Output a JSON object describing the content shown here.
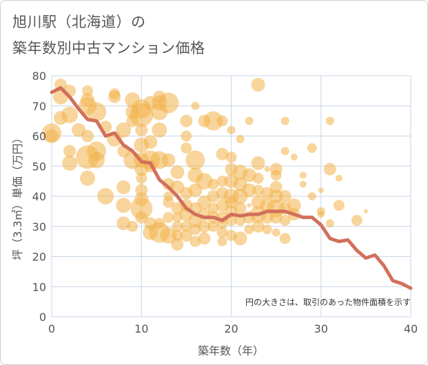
{
  "title_line1": "旭川駅（北海道）の",
  "title_line2": "築年数別中古マンション価格",
  "xlabel": "築年数（年）",
  "ylabel": "坪（3.3㎡）単価（万円）",
  "note": "円の大きさは、取引のあった物件面積を示す",
  "colors": {
    "bubble": "#f3b24a",
    "line": "#d2705c",
    "grid": "#c8d6e6",
    "text": "#555555"
  },
  "chart_data": {
    "type": "scatter",
    "xlim": [
      0,
      40
    ],
    "ylim": [
      0,
      80
    ],
    "xticks": [
      0,
      10,
      20,
      30,
      40
    ],
    "yticks": [
      0,
      10,
      20,
      30,
      40,
      50,
      60,
      70,
      80
    ],
    "grid": true,
    "line": {
      "x": [
        0,
        1,
        2,
        3,
        4,
        5,
        6,
        7,
        8,
        9,
        10,
        11,
        12,
        13,
        14,
        15,
        16,
        17,
        18,
        19,
        20,
        21,
        22,
        23,
        24,
        25,
        26,
        27,
        28,
        29,
        30,
        31,
        32,
        33,
        34,
        35,
        36,
        37,
        38,
        39,
        40
      ],
      "y": [
        74.5,
        76,
        73,
        69,
        65.5,
        65,
        60,
        61,
        57,
        55,
        51.5,
        51,
        45.5,
        43,
        40,
        36,
        34,
        33,
        33,
        32,
        34,
        33.5,
        34,
        34,
        35,
        35,
        35,
        34,
        33,
        33,
        30.5,
        26,
        25,
        25.5,
        22,
        19.5,
        20.5,
        17,
        12,
        11,
        9.5
      ]
    },
    "bubbles": [
      {
        "x": 0,
        "y": 61,
        "s": 14
      },
      {
        "x": 0,
        "y": 60,
        "s": 10
      },
      {
        "x": 1,
        "y": 77,
        "s": 9
      },
      {
        "x": 1,
        "y": 73,
        "s": 11
      },
      {
        "x": 1,
        "y": 66,
        "s": 10
      },
      {
        "x": 2,
        "y": 75,
        "s": 9
      },
      {
        "x": 2,
        "y": 67,
        "s": 12
      },
      {
        "x": 2,
        "y": 55,
        "s": 9
      },
      {
        "x": 2,
        "y": 51,
        "s": 11
      },
      {
        "x": 3,
        "y": 62,
        "s": 10
      },
      {
        "x": 4,
        "y": 75,
        "s": 8
      },
      {
        "x": 4,
        "y": 72,
        "s": 10
      },
      {
        "x": 4,
        "y": 70,
        "s": 13
      },
      {
        "x": 4,
        "y": 60,
        "s": 9
      },
      {
        "x": 4,
        "y": 53,
        "s": 17
      },
      {
        "x": 4,
        "y": 46,
        "s": 11
      },
      {
        "x": 5,
        "y": 68,
        "s": 14
      },
      {
        "x": 5,
        "y": 55,
        "s": 14
      },
      {
        "x": 5,
        "y": 52,
        "s": 12
      },
      {
        "x": 6,
        "y": 63,
        "s": 9
      },
      {
        "x": 6,
        "y": 40,
        "s": 12
      },
      {
        "x": 7,
        "y": 74,
        "s": 8
      },
      {
        "x": 7,
        "y": 73,
        "s": 9
      },
      {
        "x": 7,
        "y": 59,
        "s": 11
      },
      {
        "x": 8,
        "y": 62,
        "s": 11
      },
      {
        "x": 8,
        "y": 55,
        "s": 9
      },
      {
        "x": 8,
        "y": 43,
        "s": 10
      },
      {
        "x": 8,
        "y": 37,
        "s": 11
      },
      {
        "x": 8,
        "y": 31,
        "s": 10
      },
      {
        "x": 9,
        "y": 72,
        "s": 11
      },
      {
        "x": 9,
        "y": 68,
        "s": 10
      },
      {
        "x": 9,
        "y": 65,
        "s": 9
      },
      {
        "x": 9,
        "y": 52,
        "s": 13
      },
      {
        "x": 9,
        "y": 30,
        "s": 8
      },
      {
        "x": 10,
        "y": 69,
        "s": 14
      },
      {
        "x": 10,
        "y": 67,
        "s": 17
      },
      {
        "x": 10,
        "y": 62,
        "s": 9
      },
      {
        "x": 10,
        "y": 57,
        "s": 11
      },
      {
        "x": 10,
        "y": 52,
        "s": 11
      },
      {
        "x": 10,
        "y": 49,
        "s": 10
      },
      {
        "x": 10,
        "y": 46,
        "s": 8
      },
      {
        "x": 10,
        "y": 42,
        "s": 9
      },
      {
        "x": 10,
        "y": 39,
        "s": 10
      },
      {
        "x": 10,
        "y": 36,
        "s": 16
      },
      {
        "x": 10,
        "y": 33,
        "s": 9
      },
      {
        "x": 11,
        "y": 71,
        "s": 10
      },
      {
        "x": 11,
        "y": 58,
        "s": 10
      },
      {
        "x": 11,
        "y": 52,
        "s": 14
      },
      {
        "x": 11,
        "y": 50,
        "s": 9
      },
      {
        "x": 11,
        "y": 31,
        "s": 9
      },
      {
        "x": 11,
        "y": 28,
        "s": 11
      },
      {
        "x": 12,
        "y": 73,
        "s": 9
      },
      {
        "x": 12,
        "y": 71,
        "s": 11
      },
      {
        "x": 12,
        "y": 68,
        "s": 12
      },
      {
        "x": 12,
        "y": 62,
        "s": 11
      },
      {
        "x": 12,
        "y": 52,
        "s": 13
      },
      {
        "x": 12,
        "y": 31,
        "s": 8
      },
      {
        "x": 12,
        "y": 28,
        "s": 15
      },
      {
        "x": 13,
        "y": 71,
        "s": 15
      },
      {
        "x": 13,
        "y": 52,
        "s": 10
      },
      {
        "x": 13,
        "y": 44,
        "s": 9
      },
      {
        "x": 13,
        "y": 40,
        "s": 7
      },
      {
        "x": 13,
        "y": 38,
        "s": 8
      },
      {
        "x": 13,
        "y": 33,
        "s": 8
      },
      {
        "x": 13,
        "y": 27,
        "s": 12
      },
      {
        "x": 14,
        "y": 48,
        "s": 10
      },
      {
        "x": 14,
        "y": 43,
        "s": 10
      },
      {
        "x": 14,
        "y": 36,
        "s": 9
      },
      {
        "x": 14,
        "y": 33,
        "s": 7
      },
      {
        "x": 14,
        "y": 30,
        "s": 8
      },
      {
        "x": 14,
        "y": 27,
        "s": 8
      },
      {
        "x": 14,
        "y": 24,
        "s": 9
      },
      {
        "x": 15,
        "y": 65,
        "s": 9
      },
      {
        "x": 15,
        "y": 60,
        "s": 8
      },
      {
        "x": 15,
        "y": 56,
        "s": 8
      },
      {
        "x": 15,
        "y": 41,
        "s": 9
      },
      {
        "x": 15,
        "y": 37,
        "s": 9
      },
      {
        "x": 15,
        "y": 34,
        "s": 10
      },
      {
        "x": 15,
        "y": 30,
        "s": 8
      },
      {
        "x": 15,
        "y": 27,
        "s": 9
      },
      {
        "x": 16,
        "y": 70,
        "s": 6
      },
      {
        "x": 16,
        "y": 52,
        "s": 14
      },
      {
        "x": 16,
        "y": 47,
        "s": 11
      },
      {
        "x": 16,
        "y": 42,
        "s": 10
      },
      {
        "x": 16,
        "y": 36,
        "s": 9
      },
      {
        "x": 16,
        "y": 32,
        "s": 10
      },
      {
        "x": 16,
        "y": 29,
        "s": 8
      },
      {
        "x": 16,
        "y": 25,
        "s": 8
      },
      {
        "x": 17,
        "y": 65,
        "s": 9
      },
      {
        "x": 17,
        "y": 45,
        "s": 12
      },
      {
        "x": 17,
        "y": 38,
        "s": 10
      },
      {
        "x": 17,
        "y": 34,
        "s": 9
      },
      {
        "x": 17,
        "y": 30,
        "s": 9
      },
      {
        "x": 17,
        "y": 26,
        "s": 9
      },
      {
        "x": 18,
        "y": 65,
        "s": 14
      },
      {
        "x": 18,
        "y": 44,
        "s": 8
      },
      {
        "x": 18,
        "y": 40,
        "s": 9
      },
      {
        "x": 18,
        "y": 36,
        "s": 8
      },
      {
        "x": 18,
        "y": 33,
        "s": 9
      },
      {
        "x": 18,
        "y": 30,
        "s": 8
      },
      {
        "x": 19,
        "y": 65,
        "s": 8
      },
      {
        "x": 19,
        "y": 54,
        "s": 9
      },
      {
        "x": 19,
        "y": 45,
        "s": 8
      },
      {
        "x": 19,
        "y": 41,
        "s": 9
      },
      {
        "x": 19,
        "y": 37,
        "s": 9
      },
      {
        "x": 19,
        "y": 33,
        "s": 9
      },
      {
        "x": 19,
        "y": 31,
        "s": 8
      },
      {
        "x": 19,
        "y": 28,
        "s": 8
      },
      {
        "x": 19,
        "y": 25,
        "s": 7
      },
      {
        "x": 20,
        "y": 62,
        "s": 6
      },
      {
        "x": 20,
        "y": 53,
        "s": 8
      },
      {
        "x": 20,
        "y": 49,
        "s": 9
      },
      {
        "x": 20,
        "y": 45,
        "s": 10
      },
      {
        "x": 20,
        "y": 40,
        "s": 11
      },
      {
        "x": 20,
        "y": 38,
        "s": 9
      },
      {
        "x": 20,
        "y": 35,
        "s": 9
      },
      {
        "x": 20,
        "y": 32,
        "s": 8
      },
      {
        "x": 20,
        "y": 27,
        "s": 8
      },
      {
        "x": 21,
        "y": 59,
        "s": 6
      },
      {
        "x": 21,
        "y": 48,
        "s": 11
      },
      {
        "x": 21,
        "y": 44,
        "s": 10
      },
      {
        "x": 21,
        "y": 40,
        "s": 11
      },
      {
        "x": 21,
        "y": 36,
        "s": 9
      },
      {
        "x": 21,
        "y": 32,
        "s": 8
      },
      {
        "x": 21,
        "y": 26,
        "s": 10
      },
      {
        "x": 22,
        "y": 65,
        "s": 6
      },
      {
        "x": 22,
        "y": 47,
        "s": 10
      },
      {
        "x": 22,
        "y": 42,
        "s": 10
      },
      {
        "x": 22,
        "y": 37,
        "s": 3
      },
      {
        "x": 22,
        "y": 33,
        "s": 9
      },
      {
        "x": 22,
        "y": 29,
        "s": 7
      },
      {
        "x": 23,
        "y": 77,
        "s": 10
      },
      {
        "x": 23,
        "y": 51,
        "s": 10
      },
      {
        "x": 23,
        "y": 46,
        "s": 8
      },
      {
        "x": 23,
        "y": 42,
        "s": 8
      },
      {
        "x": 23,
        "y": 38,
        "s": 10
      },
      {
        "x": 23,
        "y": 34,
        "s": 12
      },
      {
        "x": 23,
        "y": 30,
        "s": 9
      },
      {
        "x": 24,
        "y": 49,
        "s": 4
      },
      {
        "x": 24,
        "y": 41,
        "s": 9
      },
      {
        "x": 24,
        "y": 37,
        "s": 10
      },
      {
        "x": 24,
        "y": 33,
        "s": 9
      },
      {
        "x": 24,
        "y": 29,
        "s": 7
      },
      {
        "x": 25,
        "y": 49,
        "s": 9
      },
      {
        "x": 25,
        "y": 47,
        "s": 8
      },
      {
        "x": 25,
        "y": 43,
        "s": 9
      },
      {
        "x": 25,
        "y": 40,
        "s": 10
      },
      {
        "x": 25,
        "y": 36,
        "s": 13
      },
      {
        "x": 25,
        "y": 33,
        "s": 9
      },
      {
        "x": 25,
        "y": 28,
        "s": 6
      },
      {
        "x": 26,
        "y": 65,
        "s": 6
      },
      {
        "x": 26,
        "y": 55,
        "s": 6
      },
      {
        "x": 26,
        "y": 40,
        "s": 9
      },
      {
        "x": 26,
        "y": 36,
        "s": 9
      },
      {
        "x": 26,
        "y": 32,
        "s": 8
      },
      {
        "x": 26,
        "y": 26,
        "s": 8
      },
      {
        "x": 27,
        "y": 53,
        "s": 5
      },
      {
        "x": 27,
        "y": 37,
        "s": 10
      },
      {
        "x": 27,
        "y": 34,
        "s": 9
      },
      {
        "x": 28,
        "y": 47,
        "s": 5
      },
      {
        "x": 28,
        "y": 44,
        "s": 5
      },
      {
        "x": 29,
        "y": 56,
        "s": 7
      },
      {
        "x": 29,
        "y": 40,
        "s": 6
      },
      {
        "x": 30,
        "y": 42,
        "s": 4
      },
      {
        "x": 30,
        "y": 35,
        "s": 6
      },
      {
        "x": 30,
        "y": 34,
        "s": 5
      },
      {
        "x": 31,
        "y": 65,
        "s": 6
      },
      {
        "x": 31,
        "y": 49,
        "s": 9
      },
      {
        "x": 31,
        "y": 31,
        "s": 6
      },
      {
        "x": 32,
        "y": 46,
        "s": 5
      },
      {
        "x": 32,
        "y": 37,
        "s": 8
      },
      {
        "x": 34,
        "y": 32,
        "s": 8
      },
      {
        "x": 35,
        "y": 35,
        "s": 3
      }
    ]
  }
}
